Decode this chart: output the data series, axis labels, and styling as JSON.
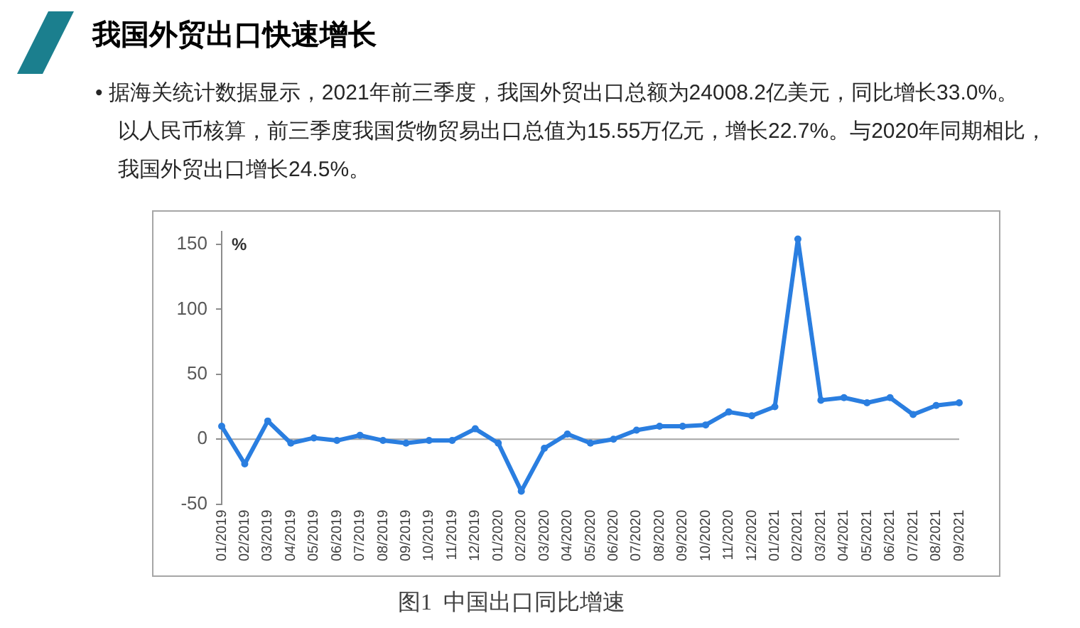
{
  "chart_data": {
    "type": "line",
    "title": "我国外贸出口快速增长",
    "ylabel": "%",
    "annotations": [
      "• 据海关统计数据显示，2021年前三季度，我国外贸出口总额为24008.2亿美元，同比增长33.0%。以人民币核算，前三季度我国货物贸易出口总值为15.55万亿元，增长22.7%。与2020年同期相比，我国外贸出口增长24.5%。",
      "图1  中国出口同比增速"
    ],
    "categories": [
      "01/2019",
      "02/2019",
      "03/2019",
      "04/2019",
      "05/2019",
      "06/2019",
      "07/2019",
      "08/2019",
      "09/2019",
      "10/2019",
      "11/2019",
      "12/2019",
      "01/2020",
      "02/2020",
      "03/2020",
      "04/2020",
      "05/2020",
      "06/2020",
      "07/2020",
      "08/2020",
      "09/2020",
      "10/2020",
      "11/2020",
      "12/2020",
      "01/2021",
      "02/2021",
      "03/2021",
      "04/2021",
      "05/2021",
      "06/2021",
      "07/2021",
      "08/2021",
      "09/2021"
    ],
    "series": [
      {
        "color": "#2a7ee0",
        "values": [
          10,
          -19,
          14,
          -3,
          1,
          -1,
          3,
          -1,
          -3,
          -1,
          -1,
          8,
          -3,
          -40,
          -7,
          4,
          -3,
          0,
          7,
          10,
          10,
          11,
          21,
          18,
          25,
          154,
          30,
          32,
          28,
          32,
          19,
          26,
          28
        ]
      }
    ],
    "ylim": [
      -50,
      160
    ],
    "yticks": [
      -50,
      0,
      50,
      100,
      150
    ],
    "ref_lines": [
      {
        "axis": "y",
        "value": 0,
        "color": "#a6a6a6"
      }
    ],
    "grid": false,
    "marker": "circle",
    "line_style": "solid"
  }
}
